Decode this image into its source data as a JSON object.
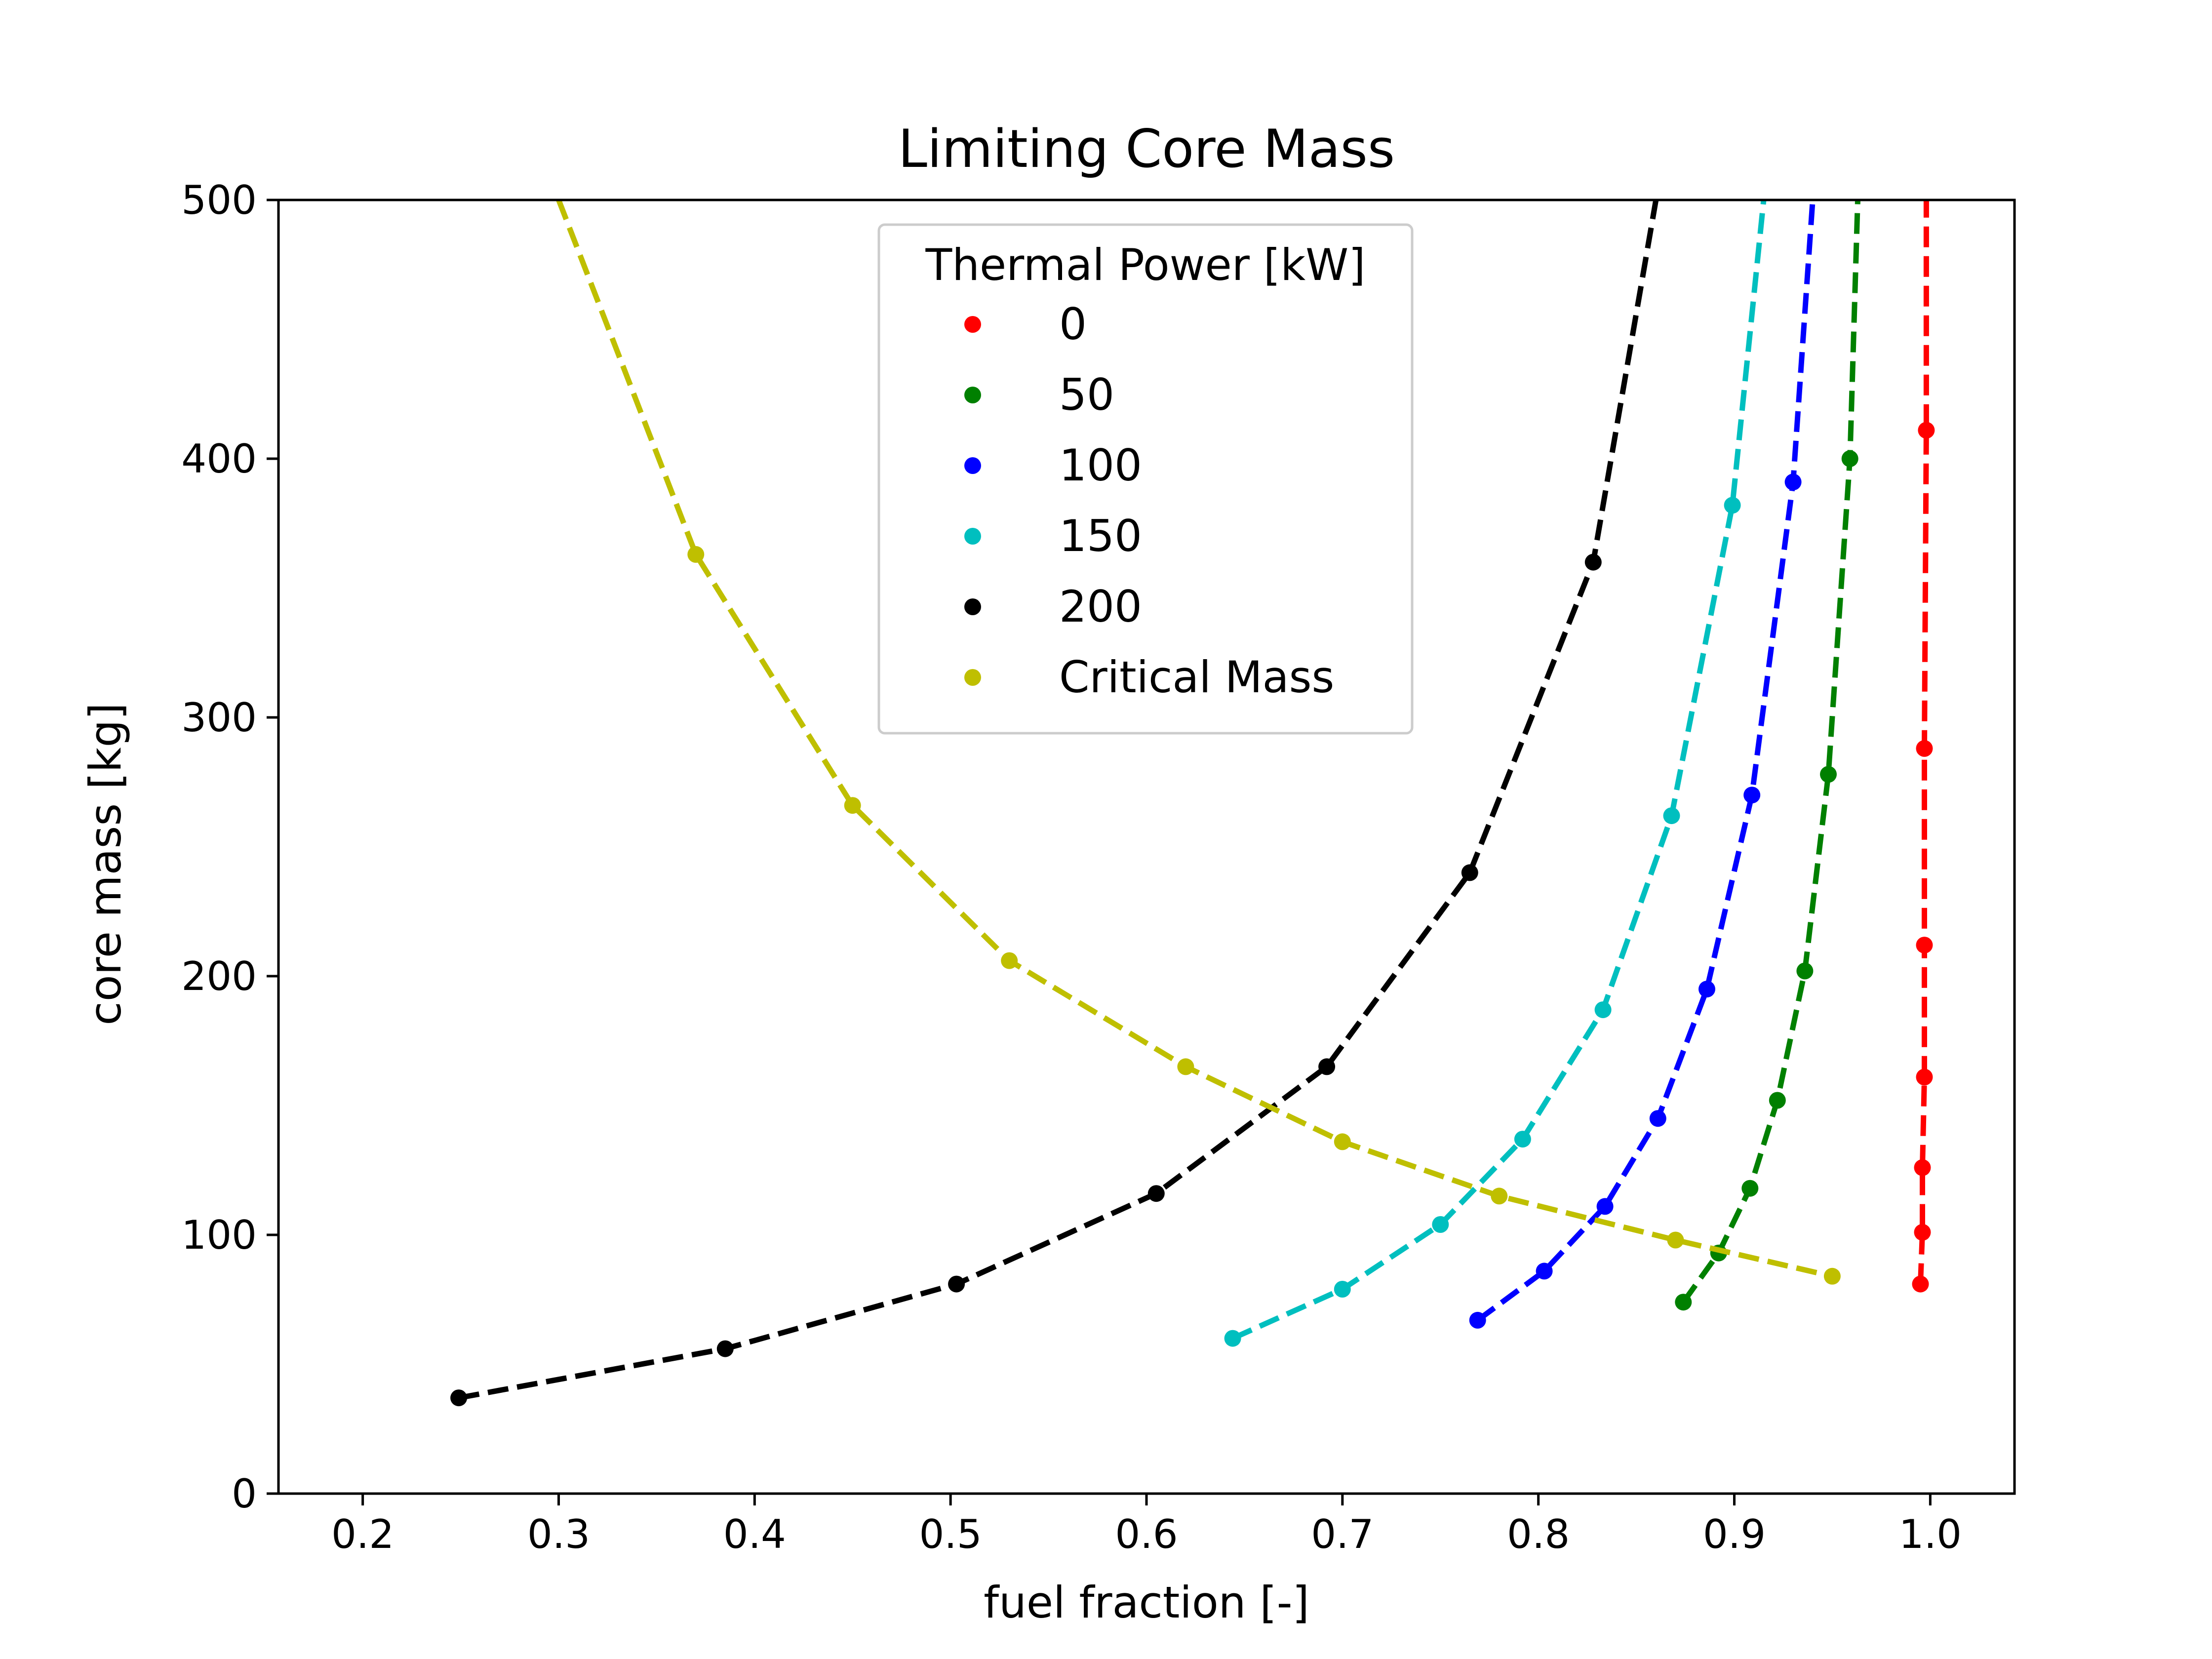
{
  "chart_data": {
    "type": "line",
    "title": "Limiting Core Mass",
    "xlabel": "fuel fraction [-]",
    "ylabel": "core mass [kg]",
    "xlim": [
      0.157,
      1.043
    ],
    "ylim": [
      0,
      500
    ],
    "xticks": [
      "0.2",
      "0.3",
      "0.4",
      "0.5",
      "0.6",
      "0.7",
      "0.8",
      "0.9",
      "1.0"
    ],
    "yticks": [
      "0",
      "100",
      "200",
      "300",
      "400",
      "500"
    ],
    "grid": false,
    "line_style": "dashed",
    "legend": {
      "title": "Thermal Power [kW]",
      "placement": "upper-center"
    },
    "series": [
      {
        "name": "0",
        "color": "#ff0000",
        "x": [
          0.995,
          0.996,
          0.996,
          0.997,
          0.997,
          0.997,
          0.998
        ],
        "y": [
          81,
          101,
          126,
          161,
          212,
          288,
          411
        ],
        "extension": [
          0.998,
          500
        ]
      },
      {
        "name": "50",
        "color": "#008000",
        "x": [
          0.874,
          0.892,
          0.908,
          0.922,
          0.936,
          0.948,
          0.959
        ],
        "y": [
          74,
          93,
          118,
          152,
          202,
          278,
          400
        ],
        "extension": [
          0.963,
          500
        ]
      },
      {
        "name": "100",
        "color": "#0000ff",
        "x": [
          0.769,
          0.803,
          0.834,
          0.861,
          0.886,
          0.909,
          0.93
        ],
        "y": [
          67,
          86,
          111,
          145,
          195,
          270,
          391
        ],
        "extension": [
          0.94,
          500
        ]
      },
      {
        "name": "150",
        "color": "#00bfbf",
        "x": [
          0.644,
          0.7,
          0.75,
          0.792,
          0.833,
          0.868,
          0.899
        ],
        "y": [
          60,
          79,
          104,
          137,
          187,
          262,
          382
        ],
        "extension": [
          0.915,
          500
        ]
      },
      {
        "name": "200",
        "color": "#000000",
        "x": [
          0.249,
          0.385,
          0.503,
          0.605,
          0.692,
          0.765,
          0.828
        ],
        "y": [
          37,
          56,
          81,
          116,
          165,
          240,
          360
        ],
        "extension": [
          0.86,
          500
        ]
      },
      {
        "name": "Critical Mass",
        "color": "#bfbf00",
        "x": [
          0.37,
          0.45,
          0.53,
          0.62,
          0.7,
          0.78,
          0.87,
          0.95
        ],
        "y": [
          363,
          266,
          206,
          165,
          136,
          115,
          98,
          84
        ],
        "extension": [
          0.3,
          500
        ],
        "extension_at_start": true
      }
    ]
  }
}
